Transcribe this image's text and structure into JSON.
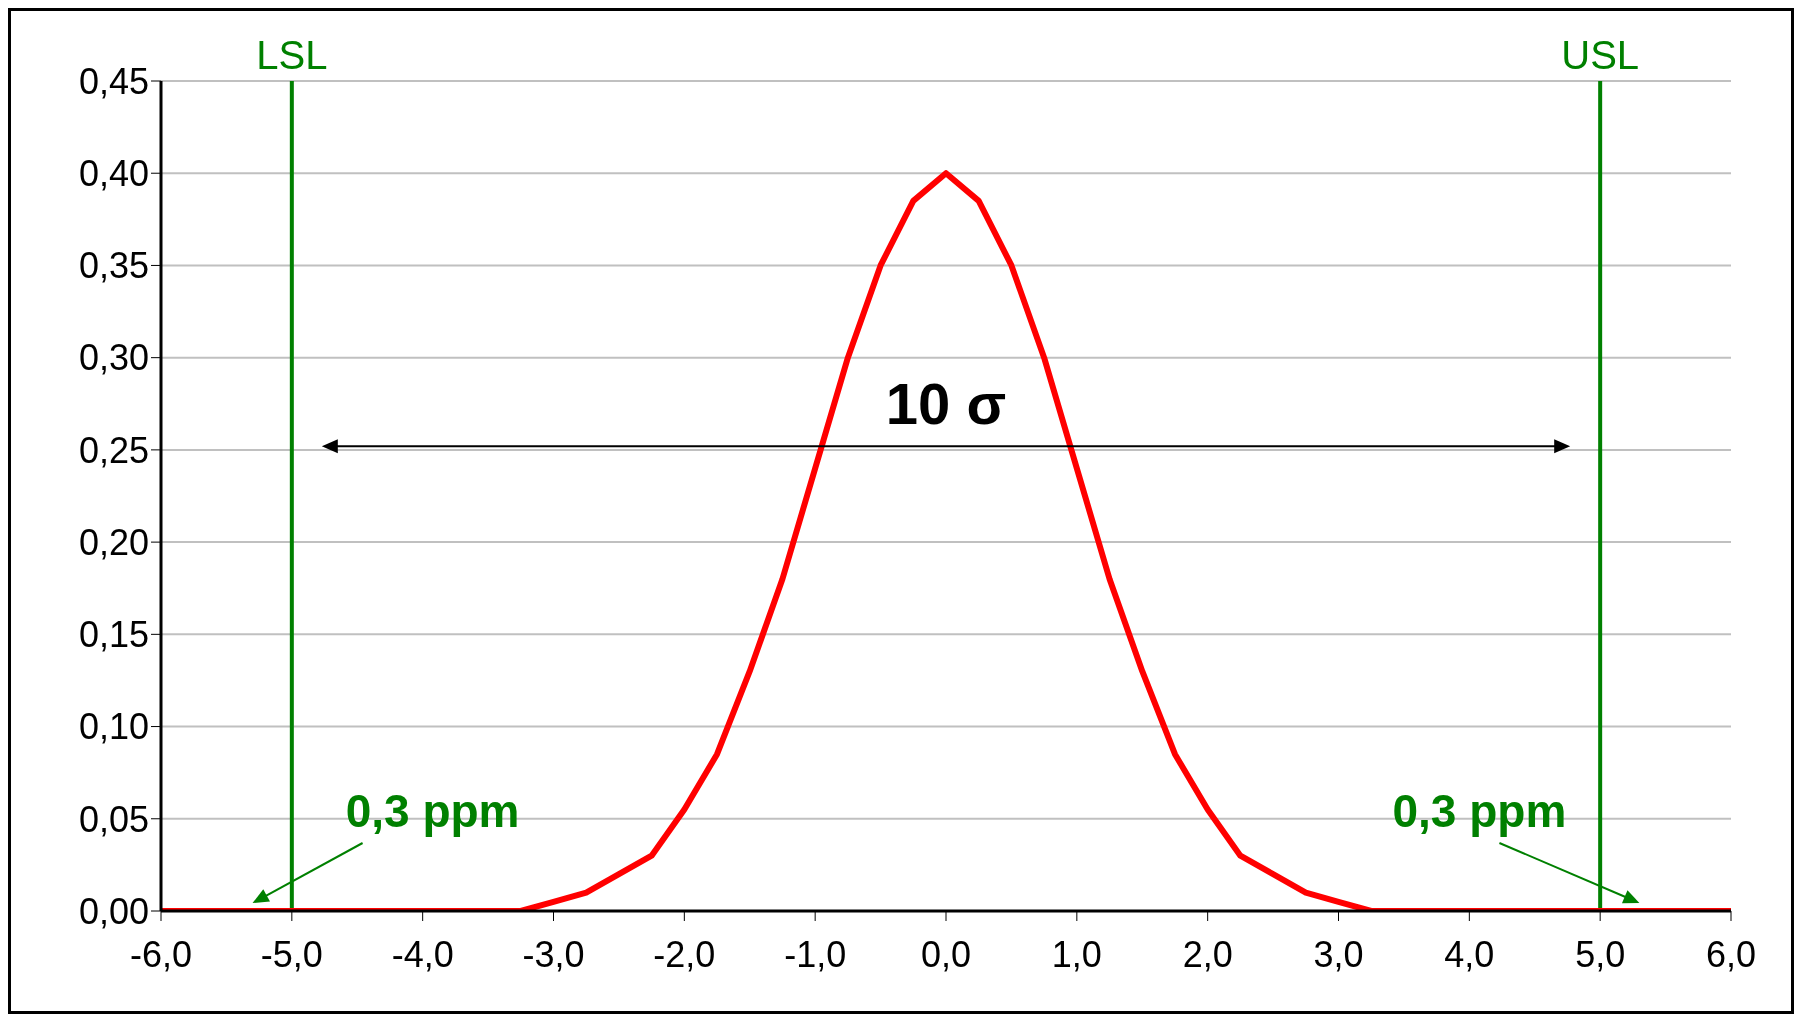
{
  "chart_data": {
    "type": "line",
    "x": [
      -6,
      -5.5,
      -5,
      -4.5,
      -4,
      -3.75,
      -3.5,
      -3.25,
      -3,
      -2.75,
      -2.5,
      -2.25,
      -2,
      -1.75,
      -1.5,
      -1.25,
      -1,
      -0.75,
      -0.5,
      -0.25,
      0,
      0.25,
      0.5,
      0.75,
      1,
      1.25,
      1.5,
      1.75,
      2,
      2.25,
      2.5,
      2.75,
      3,
      3.25,
      3.5,
      3.75,
      4,
      4.5,
      5,
      5.5,
      6
    ],
    "series": [
      {
        "color": "#ff0000",
        "values": [
          0,
          0,
          0,
          0,
          0,
          0,
          0,
          0,
          0.005,
          0.01,
          0.02,
          0.03,
          0.055,
          0.085,
          0.13,
          0.18,
          0.24,
          0.3,
          0.35,
          0.385,
          0.4,
          0.385,
          0.35,
          0.3,
          0.24,
          0.18,
          0.13,
          0.085,
          0.055,
          0.03,
          0.02,
          0.01,
          0.005,
          0,
          0,
          0,
          0,
          0,
          0,
          0,
          0
        ]
      }
    ],
    "xlim": [
      -6,
      6
    ],
    "xticks": [
      {
        "value": -6,
        "label": "-6,0"
      },
      {
        "value": -5,
        "label": "-5,0"
      },
      {
        "value": -4,
        "label": "-4,0"
      },
      {
        "value": -3,
        "label": "-3,0"
      },
      {
        "value": -2,
        "label": "-2,0"
      },
      {
        "value": -1,
        "label": "-1,0"
      },
      {
        "value": 0,
        "label": "0,0"
      },
      {
        "value": 1,
        "label": "1,0"
      },
      {
        "value": 2,
        "label": "2,0"
      },
      {
        "value": 3,
        "label": "3,0"
      },
      {
        "value": 4,
        "label": "4,0"
      },
      {
        "value": 5,
        "label": "5,0"
      },
      {
        "value": 6,
        "label": "6,0"
      }
    ],
    "ylim": [
      0,
      0.45
    ],
    "yticks": [
      {
        "value": 0,
        "label": "0,00"
      },
      {
        "value": 0.05,
        "label": "0,05"
      },
      {
        "value": 0.1,
        "label": "0,10"
      },
      {
        "value": 0.15,
        "label": "0,15"
      },
      {
        "value": 0.2,
        "label": "0,20"
      },
      {
        "value": 0.25,
        "label": "0,25"
      },
      {
        "value": 0.3,
        "label": "0,30"
      },
      {
        "value": 0.35,
        "label": "0,35"
      },
      {
        "value": 0.4,
        "label": "0,40"
      },
      {
        "value": 0.45,
        "label": "0,45"
      }
    ],
    "grid": "y",
    "marker": "none",
    "ref_lines": [
      {
        "axis": "x",
        "value": -5,
        "label": "LSL",
        "color": "#008000"
      },
      {
        "axis": "x",
        "value": 5,
        "label": "USL",
        "color": "#008000"
      }
    ],
    "annotations": [
      "10 σ",
      {
        "text": "0,3 ppm",
        "x": -5.3,
        "y": 0
      },
      {
        "text": "0,3 ppm",
        "x": 5.3,
        "y": 0
      }
    ]
  }
}
